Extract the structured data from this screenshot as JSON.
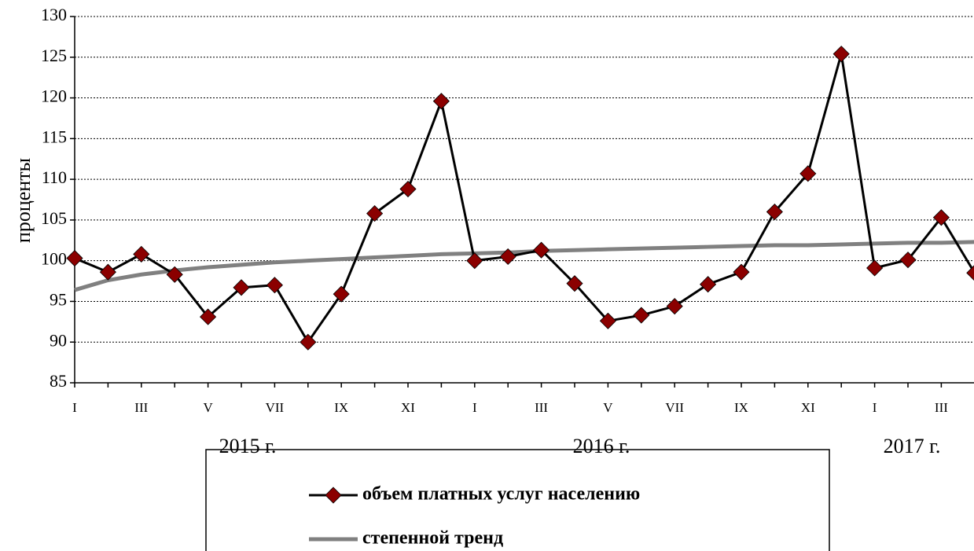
{
  "chart_data": {
    "type": "line",
    "y_label": "проценты",
    "categories": [
      "I",
      null,
      "III",
      null,
      "V",
      null,
      "VII",
      null,
      "IX",
      null,
      "XI",
      null,
      "I",
      null,
      "III",
      null,
      "V",
      null,
      "VII",
      null,
      "IX",
      null,
      "XI",
      null,
      "I",
      null,
      "III",
      null
    ],
    "year_labels": [
      "2015 г.",
      "2016 г.",
      "2017 г."
    ],
    "series": [
      {
        "name": "объем платных услуг населению",
        "color": "#000000",
        "marker_color": "#8b0000",
        "values": [
          100.3,
          98.6,
          100.8,
          98.3,
          93.1,
          96.7,
          97.0,
          90.0,
          95.9,
          105.8,
          108.8,
          119.6,
          100.0,
          100.5,
          101.3,
          97.2,
          92.6,
          93.3,
          94.4,
          97.1,
          98.6,
          106.0,
          110.7,
          125.4,
          99.1,
          100.1,
          105.3,
          98.5
        ]
      },
      {
        "name": "степенной тренд",
        "color": "#808080",
        "values": [
          96.4,
          97.6,
          98.3,
          98.8,
          99.2,
          99.5,
          99.8,
          100.0,
          100.2,
          100.4,
          100.6,
          100.8,
          100.9,
          101.0,
          101.2,
          101.3,
          101.4,
          101.5,
          101.6,
          101.7,
          101.8,
          101.9,
          101.9,
          102.0,
          102.1,
          102.2,
          102.2,
          102.3
        ]
      }
    ],
    "ylim": [
      85,
      130
    ],
    "yticks": [
      85,
      90,
      95,
      100,
      105,
      110,
      115,
      120,
      125,
      130
    ],
    "grid": true
  }
}
